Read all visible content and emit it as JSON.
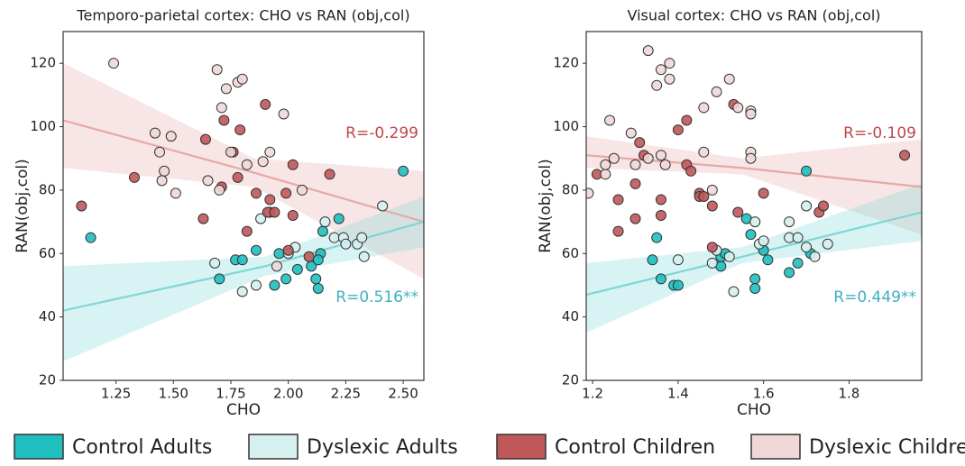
{
  "chart_data": [
    {
      "type": "scatter",
      "title": "Temporo-parietal cortex: CHO vs RAN (obj,col)",
      "x_label": "CHO",
      "y_label": "RAN(obj,col)",
      "xlim": [
        1.02,
        2.59
      ],
      "ylim": [
        20,
        130
      ],
      "xticks": [
        1.25,
        {
          "value": 1.5,
          "label": "1.50"
        },
        1.75,
        {
          "value": 2.0,
          "label": "2.00"
        },
        2.25,
        {
          "value": 2.5,
          "label": "2.50"
        }
      ],
      "yticks": [
        20,
        40,
        60,
        80,
        100,
        120
      ],
      "series": [
        {
          "name": "Control Adults",
          "color": "#1fbfbf",
          "x": [
            2.5,
            1.14,
            1.7,
            1.77,
            1.8,
            1.86,
            1.94,
            1.99,
            2.04,
            2.1,
            2.12,
            2.13,
            2.14,
            2.13,
            2.15,
            2.22,
            1.96
          ],
          "values": [
            86,
            65,
            52,
            58,
            58,
            61,
            50,
            52,
            55,
            56,
            52,
            49,
            60,
            58,
            67,
            71,
            60
          ]
        },
        {
          "name": "Dyslexic Adults",
          "color": "#d6f0f0",
          "x": [
            1.68,
            1.8,
            1.86,
            1.88,
            1.92,
            2.0,
            2.03,
            2.16,
            2.2,
            2.24,
            2.25,
            2.3,
            2.32,
            2.33,
            2.41
          ],
          "values": [
            57,
            48,
            50,
            71,
            73,
            60,
            62,
            70,
            65,
            65,
            63,
            63,
            65,
            59,
            75
          ]
        },
        {
          "name": "Control Children",
          "color": "#c0585a",
          "x": [
            1.1,
            1.33,
            1.64,
            1.63,
            1.71,
            1.72,
            1.76,
            1.78,
            1.79,
            1.82,
            1.86,
            1.9,
            1.91,
            1.92,
            1.94,
            1.99,
            2.02,
            2.02,
            2.0,
            2.09,
            2.18
          ],
          "values": [
            75,
            84,
            96,
            71,
            81,
            102,
            92,
            84,
            99,
            67,
            79,
            107,
            73,
            77,
            73,
            79,
            88,
            72,
            61,
            59,
            85
          ]
        },
        {
          "name": "Dyslexic Children",
          "color": "#f0d8d8",
          "x": [
            1.24,
            1.42,
            1.44,
            1.46,
            1.45,
            1.49,
            1.51,
            1.65,
            1.69,
            1.71,
            1.7,
            1.73,
            1.78,
            1.8,
            1.75,
            1.82,
            1.89,
            1.92,
            1.98,
            2.06,
            1.95
          ],
          "values": [
            120,
            98,
            92,
            86,
            83,
            97,
            79,
            83,
            118,
            106,
            80,
            112,
            114,
            115,
            92,
            88,
            89,
            92,
            104,
            80,
            56
          ]
        }
      ],
      "fits": [
        {
          "color": "#e8a8a8",
          "x": [
            1.02,
            1.85,
            2.59
          ],
          "values": [
            102,
            85.5,
            70
          ],
          "lower": [
            87,
            81,
            52
          ],
          "upper": [
            120,
            90,
            86
          ]
        },
        {
          "color": "#7fd6d6",
          "x": [
            1.02,
            1.9,
            2.59
          ],
          "values": [
            42,
            56,
            70
          ],
          "lower": [
            26,
            53,
            62
          ],
          "upper": [
            56,
            59,
            78
          ]
        }
      ],
      "annotations": [
        {
          "text": "R=-0.299",
          "color": "#c04848"
        },
        {
          "text": "R=0.516**",
          "color": "#3fb0c4"
        }
      ]
    },
    {
      "type": "scatter",
      "title": "Visual cortex: CHO vs RAN (obj,col)",
      "x_label": "CHO",
      "y_label": "RAN(obj,col)",
      "xlim": [
        1.185,
        1.97
      ],
      "ylim": [
        20,
        130
      ],
      "xticks": [
        1.2,
        1.4,
        1.6,
        1.8
      ],
      "yticks": [
        20,
        40,
        60,
        80,
        100,
        120
      ],
      "series": [
        {
          "color": "#1fbfbf",
          "x": [
            1.7,
            1.35,
            1.34,
            1.36,
            1.39,
            1.4,
            1.5,
            1.5,
            1.51,
            1.56,
            1.57,
            1.58,
            1.58,
            1.6,
            1.61,
            1.66,
            1.68,
            1.71
          ],
          "values": [
            86,
            65,
            58,
            52,
            50,
            50,
            56,
            59,
            60,
            71,
            66,
            52,
            49,
            61,
            58,
            54,
            57,
            60
          ]
        },
        {
          "color": "#d6f0f0",
          "x": [
            1.4,
            1.48,
            1.49,
            1.52,
            1.53,
            1.59,
            1.58,
            1.6,
            1.66,
            1.66,
            1.68,
            1.7,
            1.7,
            1.72,
            1.75
          ],
          "values": [
            58,
            57,
            61,
            59,
            48,
            63,
            70,
            64,
            70,
            65,
            65,
            75,
            62,
            59,
            63
          ]
        },
        {
          "color": "#c0585a",
          "x": [
            1.21,
            1.26,
            1.26,
            1.3,
            1.3,
            1.31,
            1.32,
            1.36,
            1.36,
            1.4,
            1.42,
            1.42,
            1.43,
            1.45,
            1.45,
            1.46,
            1.48,
            1.48,
            1.53,
            1.54,
            1.6,
            1.73,
            1.74,
            1.93
          ],
          "values": [
            85,
            77,
            67,
            82,
            71,
            95,
            91,
            77,
            72,
            99,
            102,
            88,
            86,
            79,
            78,
            78,
            75,
            62,
            107,
            73,
            79,
            73,
            75,
            91
          ]
        },
        {
          "color": "#f0d8d8",
          "x": [
            1.19,
            1.23,
            1.24,
            1.25,
            1.23,
            1.29,
            1.3,
            1.33,
            1.33,
            1.35,
            1.36,
            1.38,
            1.38,
            1.36,
            1.37,
            1.46,
            1.46,
            1.48,
            1.49,
            1.52,
            1.54,
            1.57,
            1.57,
            1.57,
            1.57
          ],
          "values": [
            79,
            85,
            102,
            90,
            88,
            98,
            88,
            90,
            124,
            113,
            118,
            115,
            120,
            91,
            88,
            106,
            92,
            80,
            111,
            115,
            106,
            105,
            92,
            90,
            104
          ]
        }
      ],
      "fits": [
        {
          "color": "#e8a8a8",
          "x": [
            1.185,
            1.55,
            1.97
          ],
          "values": [
            91,
            87,
            81
          ],
          "lower": [
            87,
            85,
            66
          ],
          "upper": [
            97,
            90,
            96
          ]
        },
        {
          "color": "#7fd6d6",
          "x": [
            1.185,
            1.55,
            1.97
          ],
          "values": [
            47,
            59,
            73
          ],
          "lower": [
            35,
            57,
            64
          ],
          "upper": [
            57,
            62,
            82
          ]
        }
      ],
      "annotations": [
        {
          "text": "R=-0.109",
          "color": "#c04848"
        },
        {
          "text": "R=0.449**",
          "color": "#3fb0c4"
        }
      ]
    }
  ]
}
